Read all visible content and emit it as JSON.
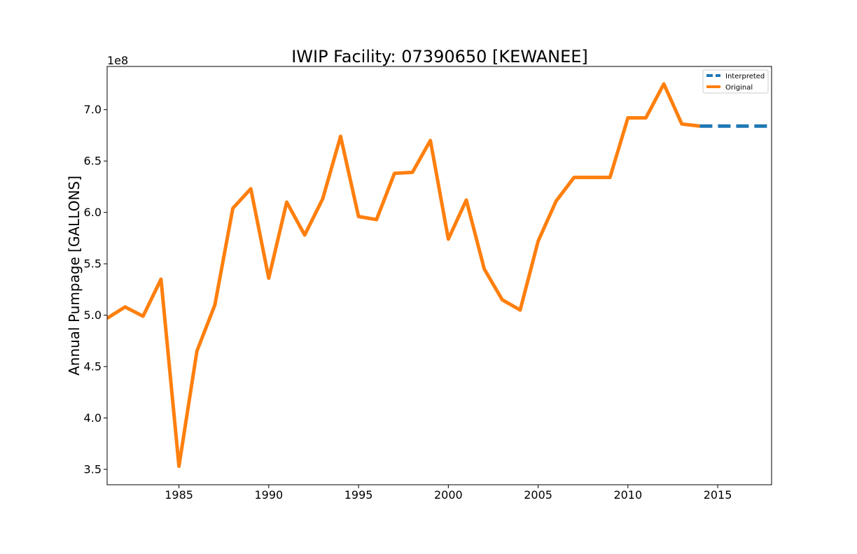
{
  "chart_data": {
    "type": "line",
    "title": "IWIP Facility: 07390650 [KEWANEE]",
    "xlabel": "",
    "ylabel": "Annual Pumpage [GALLONS]",
    "y_offset_label": "1e8",
    "xlim": [
      1981,
      2018
    ],
    "ylim": [
      3.35,
      7.42
    ],
    "x_ticks": [
      1985,
      1990,
      1995,
      2000,
      2005,
      2010,
      2015
    ],
    "y_ticks": [
      3.5,
      4.0,
      4.5,
      5.0,
      5.5,
      6.0,
      6.5,
      7.0
    ],
    "y_tick_labels": [
      "3.5",
      "4.0",
      "4.5",
      "5.0",
      "5.5",
      "6.0",
      "6.5",
      "7.0"
    ],
    "grid": false,
    "legend_position": "top-right",
    "series": [
      {
        "name": "Interpreted",
        "color": "#1f77b4",
        "style": "dashed",
        "x": [
          2014,
          2015,
          2016,
          2017,
          2018
        ],
        "y": [
          6.84,
          6.84,
          6.84,
          6.84,
          6.84
        ]
      },
      {
        "name": "Original",
        "color": "#ff7f0e",
        "style": "solid",
        "x": [
          1981,
          1982,
          1983,
          1984,
          1985,
          1986,
          1987,
          1988,
          1989,
          1990,
          1991,
          1992,
          1993,
          1994,
          1995,
          1996,
          1997,
          1998,
          1999,
          2000,
          2001,
          2002,
          2003,
          2004,
          2005,
          2006,
          2007,
          2008,
          2009,
          2010,
          2011,
          2012,
          2013,
          2014
        ],
        "y": [
          4.97,
          5.08,
          4.99,
          5.35,
          3.53,
          4.65,
          5.1,
          6.04,
          6.23,
          5.36,
          6.1,
          5.78,
          6.13,
          6.74,
          5.96,
          5.93,
          6.38,
          6.39,
          6.7,
          5.74,
          6.12,
          5.45,
          5.15,
          5.05,
          5.72,
          6.11,
          6.34,
          6.34,
          6.34,
          6.92,
          6.92,
          7.25,
          6.86,
          6.84
        ]
      }
    ]
  }
}
